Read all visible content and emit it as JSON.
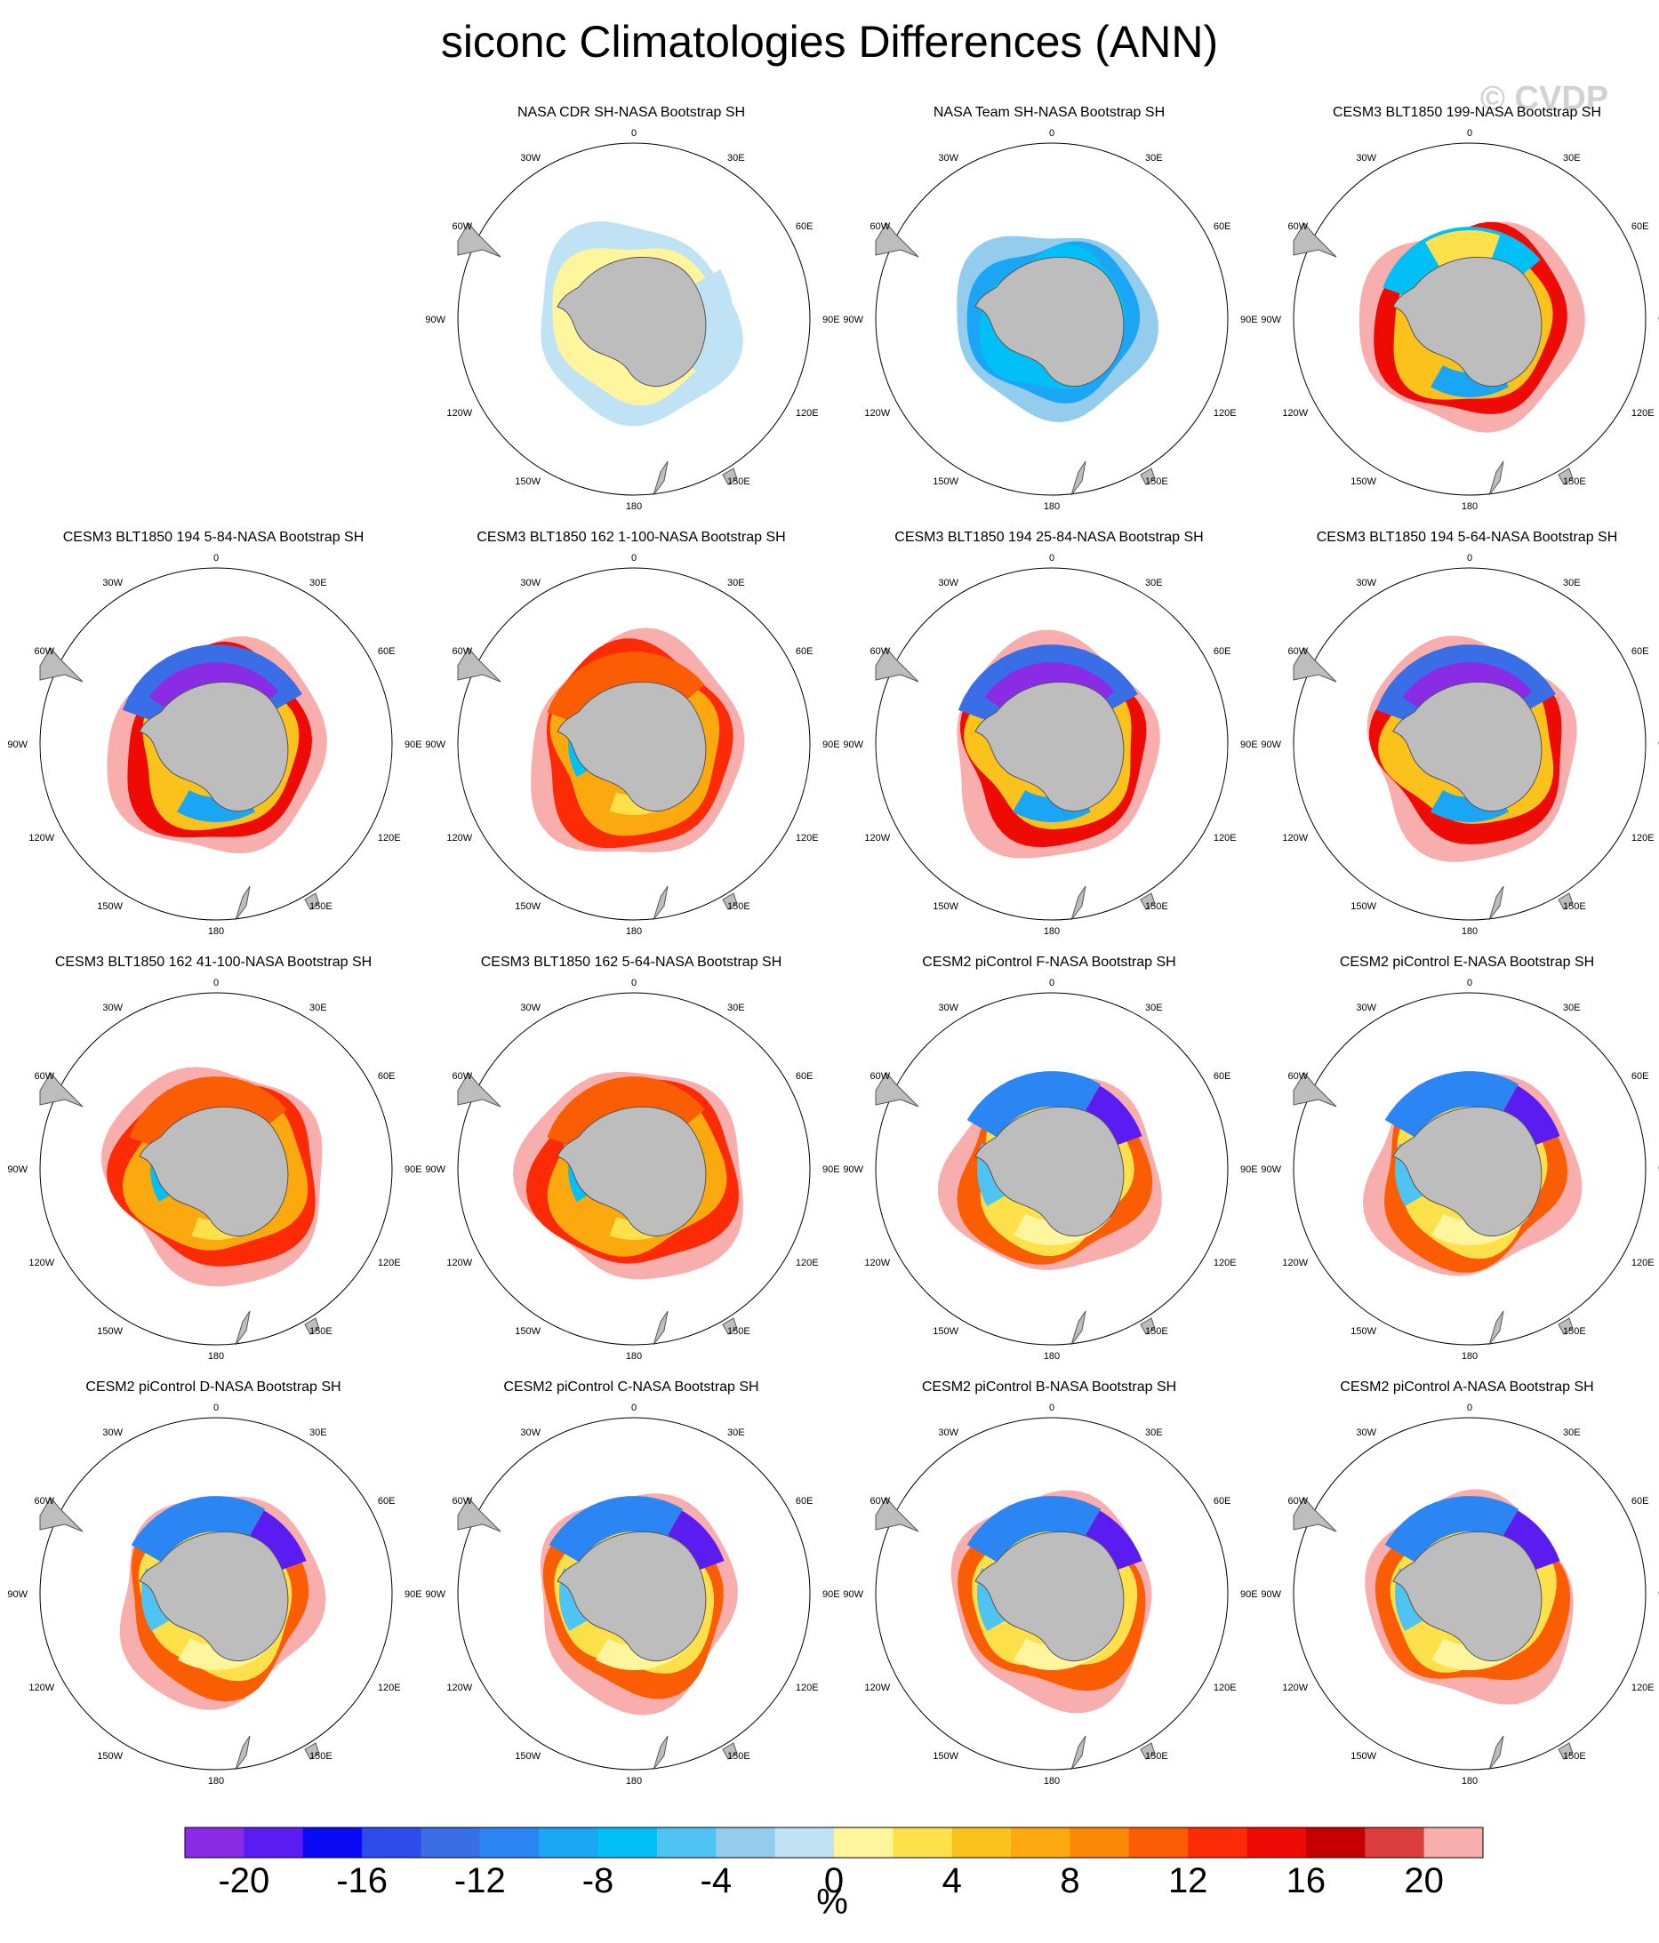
{
  "title": "siconc Climatologies Differences (ANN)",
  "watermark": "© CVDP",
  "colorbar": {
    "unit": "%",
    "tick_labels": [
      "-20",
      "-16",
      "-12",
      "-8",
      "-4",
      "0",
      "4",
      "8",
      "12",
      "16",
      "20"
    ],
    "colors": [
      "#8a2be6",
      "#5a1cf0",
      "#0a0af5",
      "#2d4cea",
      "#3a6ee6",
      "#2b85f2",
      "#1aa5f5",
      "#00c0f7",
      "#4fc4f3",
      "#93ccec",
      "#bfe3f5",
      "#fff59d",
      "#fde04a",
      "#fcc21c",
      "#fba90e",
      "#fb8905",
      "#fb5d04",
      "#fd2a06",
      "#ee0a05",
      "#c40000",
      "#dc3d3d",
      "#f9aeae"
    ]
  },
  "map_labels": {
    "lon_top": "0",
    "lon_bottom": "180",
    "lon_30w": "30W",
    "lon_30e": "30E",
    "lon_60w": "60W",
    "lon_60e": "60E",
    "lon_90w": "90W",
    "lon_90e": "90E",
    "lon_120w": "120W",
    "lon_120e": "120E",
    "lon_150w": "150W",
    "lon_150e": "150E"
  },
  "chart_data": {
    "type": "heatmap",
    "projection": "south-polar-stereographic",
    "variable": "siconc",
    "season": "ANN",
    "panels": [
      {
        "title": "NASA CDR SH-NASA Bootstrap SH",
        "pattern": "cdr"
      },
      {
        "title": "NASA Team SH-NASA Bootstrap SH",
        "pattern": "team"
      },
      {
        "title": "CESM3 BLT1850 199-NASA Bootstrap SH",
        "pattern": "cesm3-mixed"
      },
      {
        "title": "CESM3 BLT1850 194 5-84-NASA Bootstrap SH",
        "pattern": "cesm3-weddell-neg"
      },
      {
        "title": "CESM3 BLT1850 162 1-100-NASA Bootstrap SH",
        "pattern": "cesm3-warm"
      },
      {
        "title": "CESM3 BLT1850 194 25-84-NASA Bootstrap SH",
        "pattern": "cesm3-weddell-neg"
      },
      {
        "title": "CESM3 BLT1850 194 5-64-NASA Bootstrap SH",
        "pattern": "cesm3-weddell-neg"
      },
      {
        "title": "CESM3 BLT1850 162 41-100-NASA Bootstrap SH",
        "pattern": "cesm3-warm"
      },
      {
        "title": "CESM3 BLT1850 162 5-64-NASA Bootstrap SH",
        "pattern": "cesm3-warm"
      },
      {
        "title": "CESM2 piControl F-NASA Bootstrap SH",
        "pattern": "cesm2"
      },
      {
        "title": "CESM2 piControl E-NASA Bootstrap SH",
        "pattern": "cesm2"
      },
      {
        "title": "CESM2 piControl D-NASA Bootstrap SH",
        "pattern": "cesm2"
      },
      {
        "title": "CESM2 piControl C-NASA Bootstrap SH",
        "pattern": "cesm2"
      },
      {
        "title": "CESM2 piControl B-NASA Bootstrap SH",
        "pattern": "cesm2"
      },
      {
        "title": "CESM2 piControl A-NASA Bootstrap SH",
        "pattern": "cesm2"
      }
    ]
  }
}
